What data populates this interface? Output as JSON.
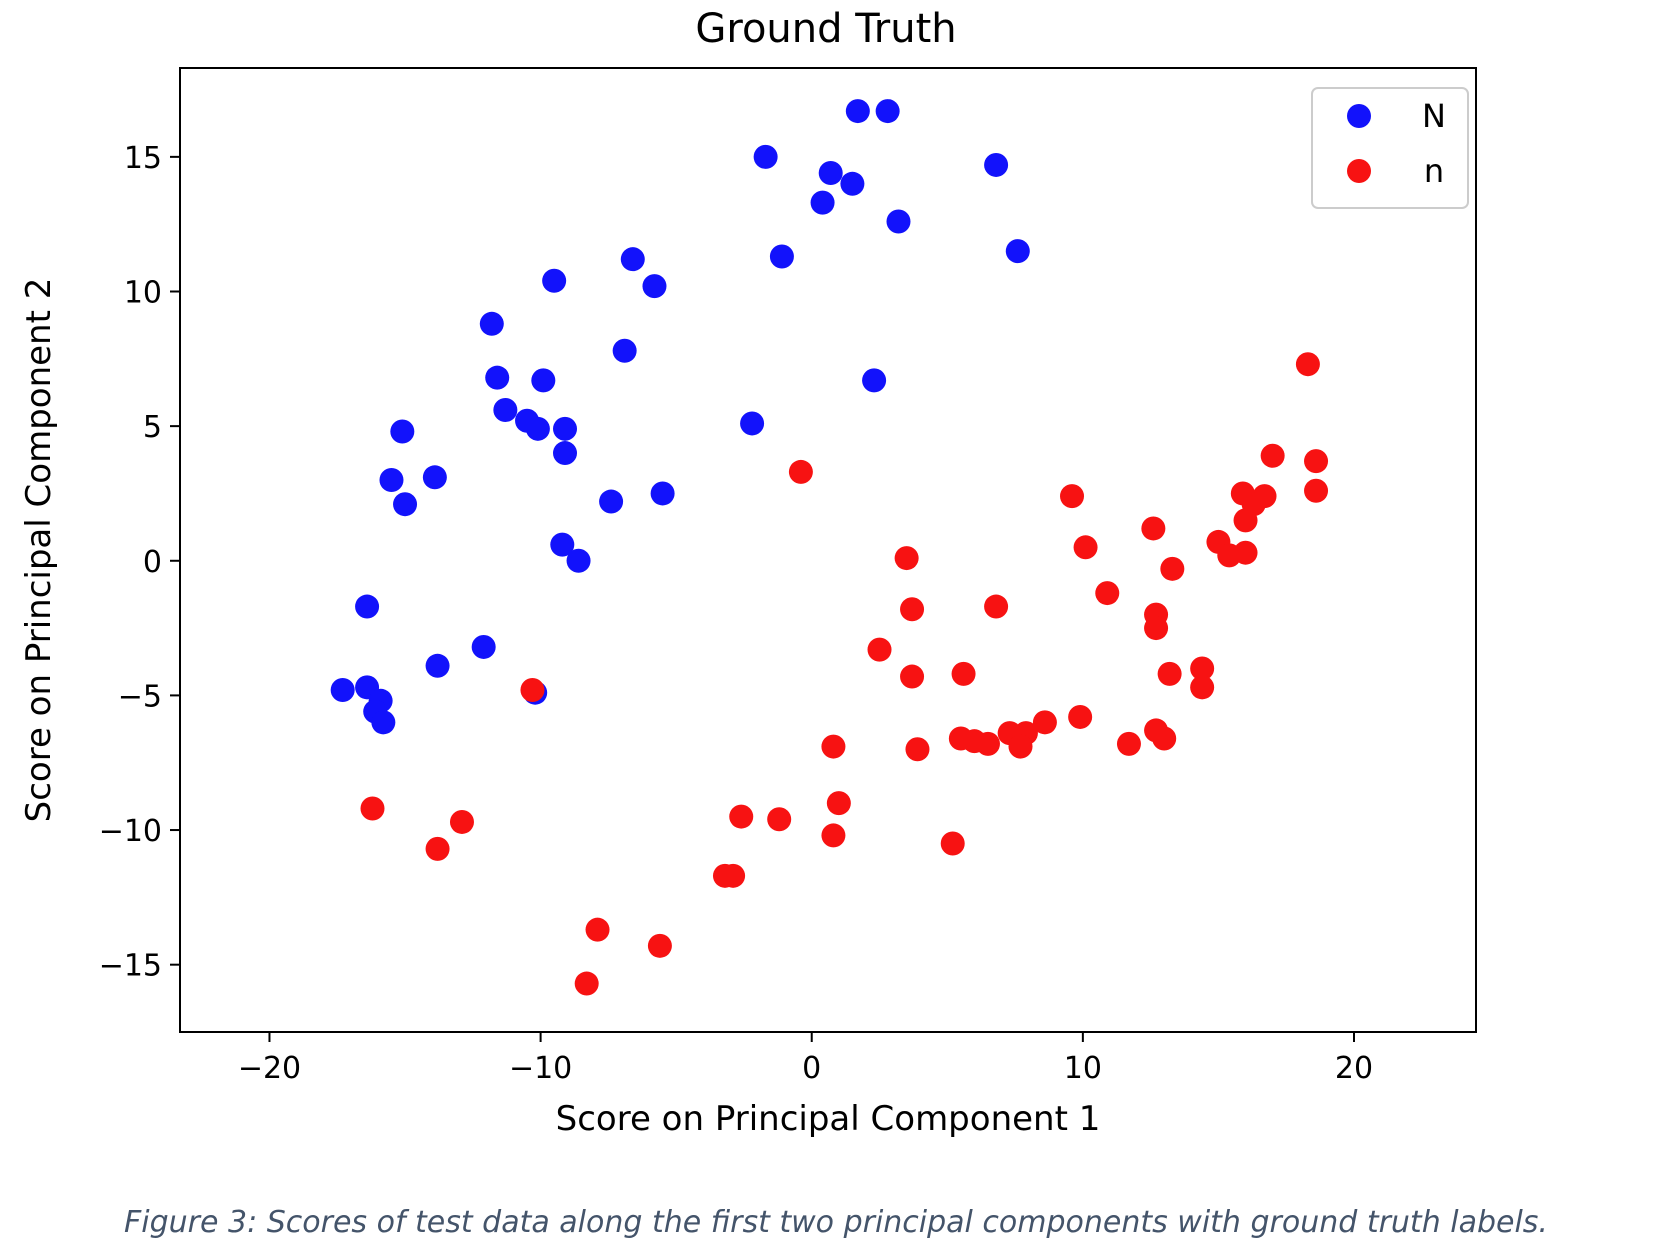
{
  "colors": {
    "N": "#1212fb",
    "n": "#f71212"
  },
  "caption": "Figure 3: Scores of test data along the first two principal components with ground truth labels.",
  "chart_data": {
    "type": "scatter",
    "title": "Ground Truth",
    "xlabel": "Score on Principal Component 1",
    "ylabel": "Score on Principal Component 2",
    "xlim": [
      -23.3,
      24.5
    ],
    "ylim": [
      -17.5,
      18.3
    ],
    "xticks": [
      -20,
      -10,
      0,
      10,
      20
    ],
    "yticks": [
      -15,
      -10,
      -5,
      0,
      5,
      10,
      15
    ],
    "xtick_labels": [
      "−20",
      "−10",
      "0",
      "10",
      "20"
    ],
    "ytick_labels": [
      "−15",
      "−10",
      "−5",
      "0",
      "5",
      "10",
      "15"
    ],
    "legend_position": "top-right",
    "series": [
      {
        "name": "N",
        "color": "#1212fb",
        "points": [
          [
            1.7,
            16.7
          ],
          [
            2.8,
            16.7
          ],
          [
            -1.7,
            15.0
          ],
          [
            6.8,
            14.7
          ],
          [
            0.7,
            14.4
          ],
          [
            1.5,
            14.0
          ],
          [
            0.4,
            13.3
          ],
          [
            3.2,
            12.6
          ],
          [
            -1.1,
            11.3
          ],
          [
            7.6,
            11.5
          ],
          [
            -6.6,
            11.2
          ],
          [
            -9.5,
            10.4
          ],
          [
            -5.8,
            10.2
          ],
          [
            -11.8,
            8.8
          ],
          [
            -6.9,
            7.8
          ],
          [
            -11.6,
            6.8
          ],
          [
            -9.9,
            6.7
          ],
          [
            2.3,
            6.7
          ],
          [
            -11.3,
            5.6
          ],
          [
            -10.5,
            5.2
          ],
          [
            -10.1,
            4.9
          ],
          [
            -9.1,
            4.9
          ],
          [
            -2.2,
            5.1
          ],
          [
            -15.1,
            4.8
          ],
          [
            -9.1,
            4.0
          ],
          [
            -13.9,
            3.1
          ],
          [
            -15.5,
            3.0
          ],
          [
            -15.0,
            2.1
          ],
          [
            -7.4,
            2.2
          ],
          [
            -5.5,
            2.5
          ],
          [
            -9.2,
            0.6
          ],
          [
            -8.6,
            0.0
          ],
          [
            -16.4,
            -1.7
          ],
          [
            -12.1,
            -3.2
          ],
          [
            -13.8,
            -3.9
          ],
          [
            -17.3,
            -4.8
          ],
          [
            -16.4,
            -4.7
          ],
          [
            -15.9,
            -5.2
          ],
          [
            -16.1,
            -5.6
          ],
          [
            -15.8,
            -6.0
          ],
          [
            -10.2,
            -4.9
          ]
        ]
      },
      {
        "name": "n",
        "color": "#f71212",
        "points": [
          [
            18.3,
            7.3
          ],
          [
            17.0,
            3.9
          ],
          [
            18.6,
            3.7
          ],
          [
            18.6,
            2.6
          ],
          [
            16.7,
            2.4
          ],
          [
            15.9,
            2.5
          ],
          [
            16.3,
            2.1
          ],
          [
            16.0,
            1.5
          ],
          [
            15.0,
            0.7
          ],
          [
            15.4,
            0.2
          ],
          [
            16.0,
            0.3
          ],
          [
            12.6,
            1.2
          ],
          [
            13.3,
            -0.3
          ],
          [
            9.6,
            2.4
          ],
          [
            10.1,
            0.5
          ],
          [
            10.9,
            -1.2
          ],
          [
            12.7,
            -2.0
          ],
          [
            12.7,
            -2.5
          ],
          [
            13.2,
            -4.2
          ],
          [
            14.4,
            -4.0
          ],
          [
            14.4,
            -4.7
          ],
          [
            -0.4,
            3.3
          ],
          [
            3.5,
            0.1
          ],
          [
            3.7,
            -1.8
          ],
          [
            6.8,
            -1.7
          ],
          [
            2.5,
            -3.3
          ],
          [
            3.7,
            -4.3
          ],
          [
            5.6,
            -4.2
          ],
          [
            9.9,
            -5.8
          ],
          [
            8.6,
            -6.0
          ],
          [
            7.9,
            -6.4
          ],
          [
            7.3,
            -6.4
          ],
          [
            7.7,
            -6.9
          ],
          [
            6.5,
            -6.8
          ],
          [
            6.0,
            -6.7
          ],
          [
            5.5,
            -6.6
          ],
          [
            12.7,
            -6.3
          ],
          [
            13.0,
            -6.6
          ],
          [
            11.7,
            -6.8
          ],
          [
            0.8,
            -6.9
          ],
          [
            3.9,
            -7.0
          ],
          [
            1.0,
            -9.0
          ],
          [
            0.8,
            -10.2
          ],
          [
            5.2,
            -10.5
          ],
          [
            -1.2,
            -9.6
          ],
          [
            -2.6,
            -9.5
          ],
          [
            -2.9,
            -11.7
          ],
          [
            -3.2,
            -11.7
          ],
          [
            -5.6,
            -14.3
          ],
          [
            -7.9,
            -13.7
          ],
          [
            -8.3,
            -15.7
          ],
          [
            -10.3,
            -4.8
          ],
          [
            -16.2,
            -9.2
          ],
          [
            -12.9,
            -9.7
          ],
          [
            -13.8,
            -10.7
          ]
        ]
      }
    ]
  }
}
